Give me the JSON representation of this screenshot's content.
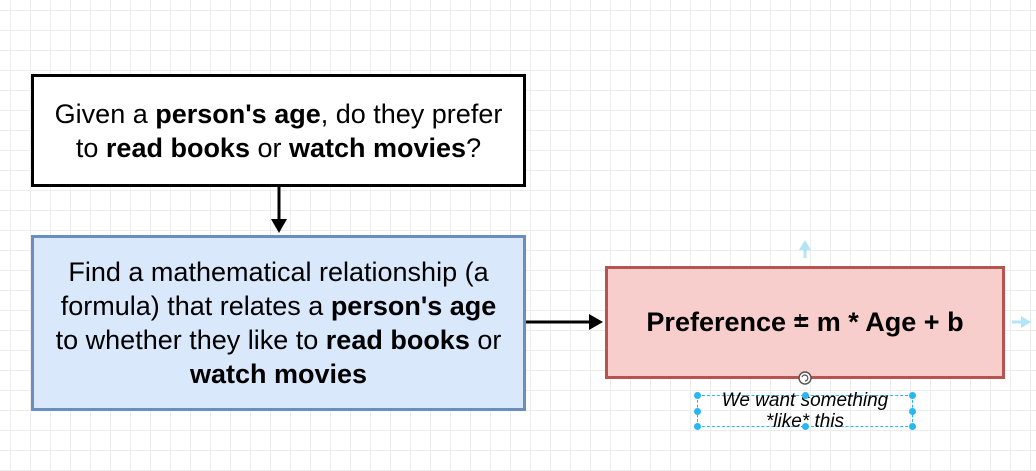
{
  "question": {
    "p1": "Given a ",
    "b1": "person's age",
    "p2": ", do they prefer",
    "p3": "to ",
    "b2": "read books",
    "p4": " or ",
    "b3": "watch movies",
    "p5": "?"
  },
  "goal": {
    "line1": "Find a mathematical relationship (a",
    "p1": "formula) that relates a ",
    "b1": "person's age",
    "p2": "to whether they like to ",
    "b2": "read books",
    "p3": " or",
    "b3": "watch movies"
  },
  "formula": {
    "text": "Preference = m * Age + b"
  },
  "note": {
    "line1": "We want something",
    "line2": "*like* this"
  },
  "colors": {
    "goal_fill": "#dae8fc",
    "goal_stroke": "#6c8ebf",
    "formula_fill": "#f8cecc",
    "formula_stroke": "#b85450",
    "selection": "#29b6f2"
  }
}
